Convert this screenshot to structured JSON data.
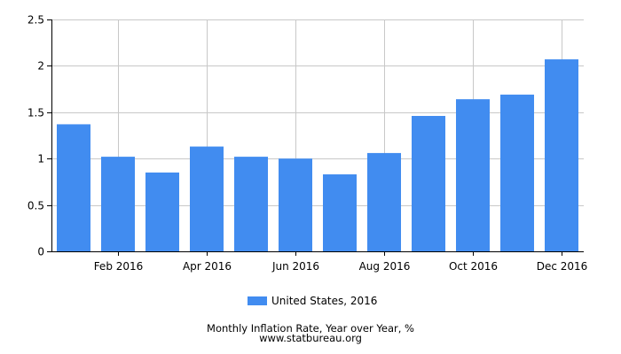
{
  "chart_data": {
    "type": "bar",
    "categories": [
      "Jan 2016",
      "Feb 2016",
      "Mar 2016",
      "Apr 2016",
      "May 2016",
      "Jun 2016",
      "Jul 2016",
      "Aug 2016",
      "Sep 2016",
      "Oct 2016",
      "Nov 2016",
      "Dec 2016"
    ],
    "x_tick_labels": [
      "Feb 2016",
      "Apr 2016",
      "Jun 2016",
      "Aug 2016",
      "Oct 2016",
      "Dec 2016"
    ],
    "series": [
      {
        "name": "United States, 2016",
        "values": [
          1.37,
          1.02,
          0.85,
          1.13,
          1.02,
          1.0,
          0.83,
          1.06,
          1.46,
          1.64,
          1.69,
          2.07
        ]
      }
    ],
    "ylim": [
      0,
      2.5
    ],
    "y_ticks": [
      0,
      0.5,
      1,
      1.5,
      2,
      2.5
    ],
    "y_tick_labels": [
      "0",
      "0.5",
      "1",
      "1.5",
      "2",
      "2.5"
    ],
    "grid": true,
    "legend_position": "bottom-center",
    "bar_color": "#418CF0",
    "title": "Monthly Inflation Rate, Year over Year, %",
    "source": "www.statbureau.org"
  }
}
